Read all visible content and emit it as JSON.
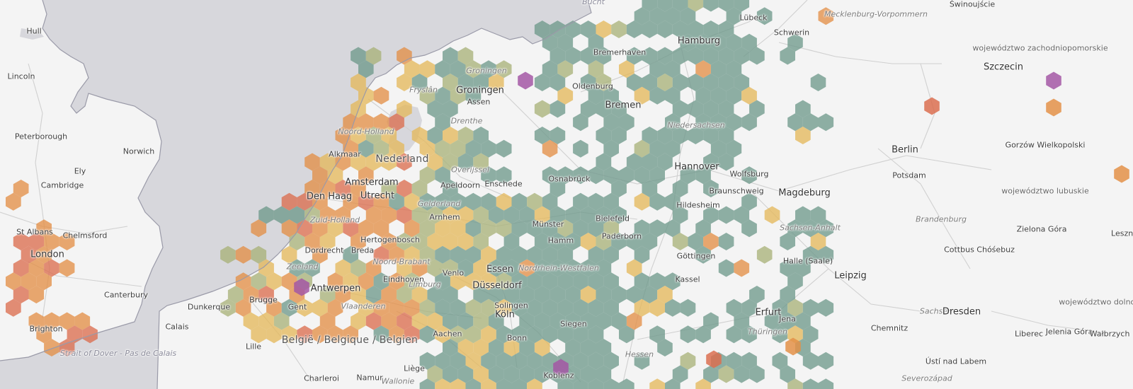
{
  "map": {
    "colors": {
      "sea": "#d7d7dc",
      "land": "#f4f4f4",
      "coast": "#9a9aa8",
      "roads": "#d0d0d0",
      "hex_green": "#6f9a8c",
      "hex_olive": "#a9b27a",
      "hex_yellow": "#e4b85c",
      "hex_orange": "#e39048",
      "hex_red": "#db6e50",
      "hex_purple": "#a357a5"
    },
    "labels": [
      {
        "text": "Hull",
        "cls": "city"
      },
      {
        "text": "Lincoln",
        "cls": "city"
      },
      {
        "text": "Peterborough",
        "cls": "city"
      },
      {
        "text": "Norwich",
        "cls": "city"
      },
      {
        "text": "Ely",
        "cls": "city"
      },
      {
        "text": "Cambridge",
        "cls": "city"
      },
      {
        "text": "St Albans",
        "cls": "city"
      },
      {
        "text": "Chelmsford",
        "cls": "city"
      },
      {
        "text": "London",
        "cls": "big"
      },
      {
        "text": "Canterbury",
        "cls": "city"
      },
      {
        "text": "Brighton",
        "cls": "city"
      },
      {
        "text": "Strait of Dover - Pas de Calais",
        "cls": "water"
      },
      {
        "text": "Calais",
        "cls": "city"
      },
      {
        "text": "Dunkerque",
        "cls": "city"
      },
      {
        "text": "Lille",
        "cls": "city"
      },
      {
        "text": "Brugge",
        "cls": "city"
      },
      {
        "text": "Gent",
        "cls": "city"
      },
      {
        "text": "Antwerpen",
        "cls": "big"
      },
      {
        "text": "Vlaanderen",
        "cls": "region"
      },
      {
        "text": "België / Belgique / Belgien",
        "cls": "country"
      },
      {
        "text": "Charleroi",
        "cls": "city"
      },
      {
        "text": "Namur",
        "cls": "city"
      },
      {
        "text": "Wallonie",
        "cls": "region"
      },
      {
        "text": "Liège",
        "cls": "city"
      },
      {
        "text": "Aachen",
        "cls": "city"
      },
      {
        "text": "Zeeland",
        "cls": "region"
      },
      {
        "text": "Breda",
        "cls": "city"
      },
      {
        "text": "Eindhoven",
        "cls": "city"
      },
      {
        "text": "Noord-Brabant",
        "cls": "region"
      },
      {
        "text": "Limburg",
        "cls": "region"
      },
      {
        "text": "Venlo",
        "cls": "city"
      },
      {
        "text": "Hertogenbosch",
        "cls": "city"
      },
      {
        "text": "Dordrecht",
        "cls": "city"
      },
      {
        "text": "Zuid-Holland",
        "cls": "region"
      },
      {
        "text": "Den Haag",
        "cls": "big"
      },
      {
        "text": "Utrecht",
        "cls": "big"
      },
      {
        "text": "Amsterdam",
        "cls": "big"
      },
      {
        "text": "Alkmaar",
        "cls": "city"
      },
      {
        "text": "Noord-Holland",
        "cls": "region"
      },
      {
        "text": "Nederland",
        "cls": "country"
      },
      {
        "text": "Fryslân",
        "cls": "region"
      },
      {
        "text": "Groningen",
        "cls": "region"
      },
      {
        "text": "Groningen",
        "cls": "big"
      },
      {
        "text": "Assen",
        "cls": "city"
      },
      {
        "text": "Drenthe",
        "cls": "region"
      },
      {
        "text": "Overijssel",
        "cls": "region"
      },
      {
        "text": "Apeldoorn",
        "cls": "city"
      },
      {
        "text": "Gelderland",
        "cls": "region"
      },
      {
        "text": "Arnhem",
        "cls": "city"
      },
      {
        "text": "Enschede",
        "cls": "city"
      },
      {
        "text": "Bremerhaven",
        "cls": "city"
      },
      {
        "text": "Oldenburg",
        "cls": "city"
      },
      {
        "text": "Bremen",
        "cls": "big"
      },
      {
        "text": "Hamburg",
        "cls": "big"
      },
      {
        "text": "Lübeck",
        "cls": "city"
      },
      {
        "text": "Schwerin",
        "cls": "city"
      },
      {
        "text": "Mecklenburg-Vorpommern",
        "cls": "region"
      },
      {
        "text": "Świnoujście",
        "cls": "city"
      },
      {
        "text": "Szczecin",
        "cls": "big"
      },
      {
        "text": "województwo zachodniopomorskie",
        "cls": "regionbig"
      },
      {
        "text": "Niedersachsen",
        "cls": "region"
      },
      {
        "text": "Osnabrück",
        "cls": "city"
      },
      {
        "text": "Hannover",
        "cls": "big"
      },
      {
        "text": "Wolfsburg",
        "cls": "city"
      },
      {
        "text": "Braunschweig",
        "cls": "city"
      },
      {
        "text": "Hildesheim",
        "cls": "city"
      },
      {
        "text": "Magdeburg",
        "cls": "big"
      },
      {
        "text": "Berlin",
        "cls": "big"
      },
      {
        "text": "Potsdam",
        "cls": "city"
      },
      {
        "text": "Brandenburg",
        "cls": "region"
      },
      {
        "text": "Gorzów Wielkopolski",
        "cls": "city"
      },
      {
        "text": "województwo lubuskie",
        "cls": "regionbig"
      },
      {
        "text": "Zielona Góra",
        "cls": "city"
      },
      {
        "text": "Leszno",
        "cls": "city"
      },
      {
        "text": "Sachsen-Anhalt",
        "cls": "region"
      },
      {
        "text": "Münster",
        "cls": "city"
      },
      {
        "text": "Bielefeld",
        "cls": "city"
      },
      {
        "text": "Hamm",
        "cls": "city"
      },
      {
        "text": "Paderborn",
        "cls": "city"
      },
      {
        "text": "Nordrhein-Westfalen",
        "cls": "region"
      },
      {
        "text": "Essen",
        "cls": "big"
      },
      {
        "text": "Düsseldorf",
        "cls": "big"
      },
      {
        "text": "Solingen",
        "cls": "city"
      },
      {
        "text": "Köln",
        "cls": "big"
      },
      {
        "text": "Bonn",
        "cls": "city"
      },
      {
        "text": "Siegen",
        "cls": "city"
      },
      {
        "text": "Göttingen",
        "cls": "city"
      },
      {
        "text": "Kassel",
        "cls": "city"
      },
      {
        "text": "Hessen",
        "cls": "region"
      },
      {
        "text": "Koblenz",
        "cls": "city"
      },
      {
        "text": "Halle (Saale)",
        "cls": "city"
      },
      {
        "text": "Leipzig",
        "cls": "big"
      },
      {
        "text": "Cottbus Chóśebuz",
        "cls": "city"
      },
      {
        "text": "Erfurt",
        "cls": "big"
      },
      {
        "text": "Jena",
        "cls": "city"
      },
      {
        "text": "Thüringen",
        "cls": "region"
      },
      {
        "text": "Sachsen",
        "cls": "region"
      },
      {
        "text": "Chemnitz",
        "cls": "city"
      },
      {
        "text": "Dresden",
        "cls": "big"
      },
      {
        "text": "Liberec",
        "cls": "city"
      },
      {
        "text": "Jelenia Góra",
        "cls": "city"
      },
      {
        "text": "Wałbrzych",
        "cls": "city"
      },
      {
        "text": "województwo dolnośląskie",
        "cls": "regionbig"
      },
      {
        "text": "Ústí nad Labem",
        "cls": "city"
      },
      {
        "text": "Severozápad",
        "cls": "region"
      },
      {
        "text": "Bucht",
        "cls": "water"
      }
    ]
  }
}
